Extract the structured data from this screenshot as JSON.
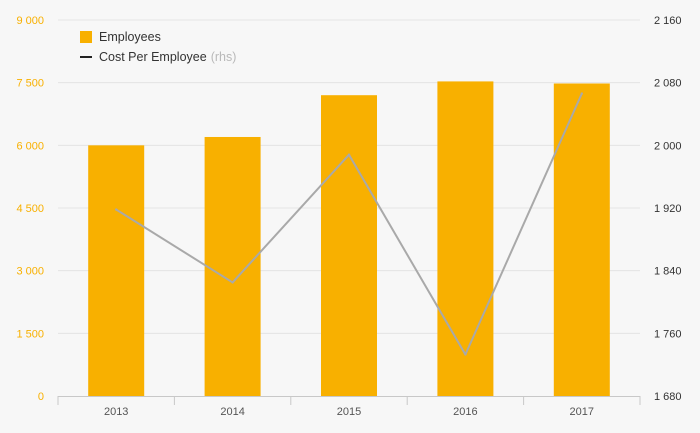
{
  "chart_data": {
    "type": "bar",
    "categories": [
      "2013",
      "2014",
      "2015",
      "2016",
      "2017"
    ],
    "series": [
      {
        "name": "Employees",
        "type": "bar",
        "axis": "left",
        "color": "#f8b000",
        "values": [
          6000,
          6200,
          7200,
          7530,
          7480
        ]
      },
      {
        "name": "Cost Per Employee",
        "type": "line",
        "axis": "right",
        "color": "#a9a9a9",
        "values": [
          1918,
          1825,
          1988,
          1733,
          2066
        ]
      }
    ],
    "y_left": {
      "min": 0,
      "max": 9000,
      "ticks": [
        "0",
        "1 500",
        "3 000",
        "4 500",
        "6 000",
        "7 500",
        "9 000"
      ],
      "color": "#f8b000"
    },
    "y_right": {
      "min": 1680,
      "max": 2160,
      "ticks": [
        "1 680",
        "1 760",
        "1 840",
        "1 920",
        "2 000",
        "2 080",
        "2 160"
      ]
    },
    "grid": true,
    "legend": {
      "position": "top-left",
      "note": "(rhs)"
    }
  }
}
